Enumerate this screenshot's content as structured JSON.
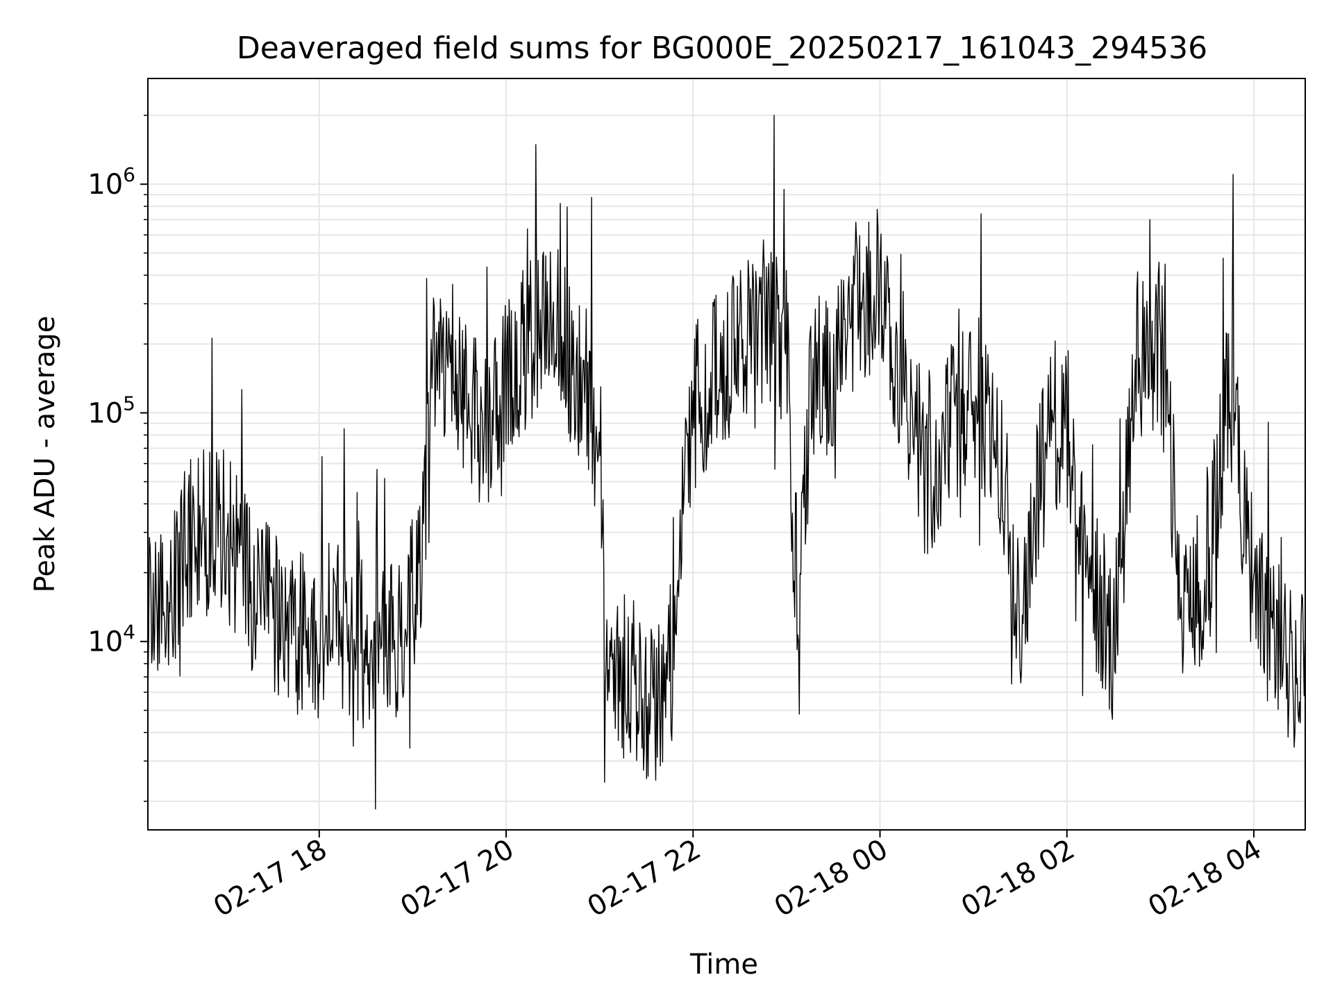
{
  "chart_data": {
    "type": "line",
    "title": "Deaveraged field sums for BG000E_20250217_161043_294536",
    "xlabel": "Time",
    "ylabel": "Peak ADU - average",
    "xlim": [
      "2025-02-17 16:10",
      "2025-02-18 04:33"
    ],
    "ylim": [
      1500,
      2900000
    ],
    "yscale": "log",
    "grid": true,
    "line_color": "#000000",
    "grid_color": "#e6e6e6",
    "x_ticks": [
      {
        "value": "2025-02-17 18:00",
        "label": "02-17 18"
      },
      {
        "value": "2025-02-17 20:00",
        "label": "02-17 20"
      },
      {
        "value": "2025-02-17 22:00",
        "label": "02-17 22"
      },
      {
        "value": "2025-02-18 00:00",
        "label": "02-18 00"
      },
      {
        "value": "2025-02-18 02:00",
        "label": "02-18 02"
      },
      {
        "value": "2025-02-18 04:00",
        "label": "02-18 04"
      }
    ],
    "y_ticks": [
      {
        "value": 10000,
        "mantissa": "10",
        "exponent": "4"
      },
      {
        "value": 100000,
        "mantissa": "10",
        "exponent": "5"
      },
      {
        "value": 1000000,
        "mantissa": "10",
        "exponent": "6"
      }
    ],
    "series": [
      {
        "x": [
          "2025-02-17 16:10",
          "2025-02-17 16:25",
          "2025-02-17 16:40",
          "2025-02-17 16:55",
          "2025-02-17 17:10",
          "2025-02-17 17:25",
          "2025-02-17 17:40",
          "2025-02-17 17:55",
          "2025-02-17 18:10",
          "2025-02-17 18:25",
          "2025-02-17 18:40",
          "2025-02-17 18:55",
          "2025-02-17 19:05",
          "2025-02-17 19:15",
          "2025-02-17 19:30",
          "2025-02-17 19:45",
          "2025-02-17 20:00",
          "2025-02-17 20:15",
          "2025-02-17 20:30",
          "2025-02-17 20:45",
          "2025-02-17 20:55",
          "2025-02-17 21:05",
          "2025-02-17 21:20",
          "2025-02-17 21:35",
          "2025-02-17 21:45",
          "2025-02-17 22:00",
          "2025-02-17 22:15",
          "2025-02-17 22:30",
          "2025-02-17 22:45",
          "2025-02-17 23:00",
          "2025-02-17 23:08",
          "2025-02-17 23:15",
          "2025-02-17 23:30",
          "2025-02-17 23:45",
          "2025-02-18 00:00",
          "2025-02-18 00:15",
          "2025-02-18 00:30",
          "2025-02-18 00:45",
          "2025-02-18 01:00",
          "2025-02-18 01:15",
          "2025-02-18 01:30",
          "2025-02-18 01:45",
          "2025-02-18 02:00",
          "2025-02-18 02:15",
          "2025-02-18 02:30",
          "2025-02-18 02:45",
          "2025-02-18 03:00",
          "2025-02-18 03:15",
          "2025-02-18 03:30",
          "2025-02-18 03:45",
          "2025-02-18 04:00",
          "2025-02-18 04:15",
          "2025-02-18 04:33"
        ],
        "y": [
          12000,
          15000,
          30000,
          35000,
          20000,
          15000,
          12000,
          10000,
          12000,
          10000,
          9000,
          12000,
          25000,
          200000,
          150000,
          80000,
          150000,
          200000,
          250000,
          150000,
          120000,
          10000,
          6000,
          5000,
          8000,
          100000,
          150000,
          200000,
          250000,
          200000,
          10000,
          150000,
          150000,
          300000,
          300000,
          150000,
          50000,
          100000,
          100000,
          80000,
          15000,
          60000,
          90000,
          20000,
          10000,
          150000,
          200000,
          15000,
          20000,
          150000,
          15000,
          10000,
          7000
        ]
      }
    ],
    "noise_seed": 987654321
  }
}
